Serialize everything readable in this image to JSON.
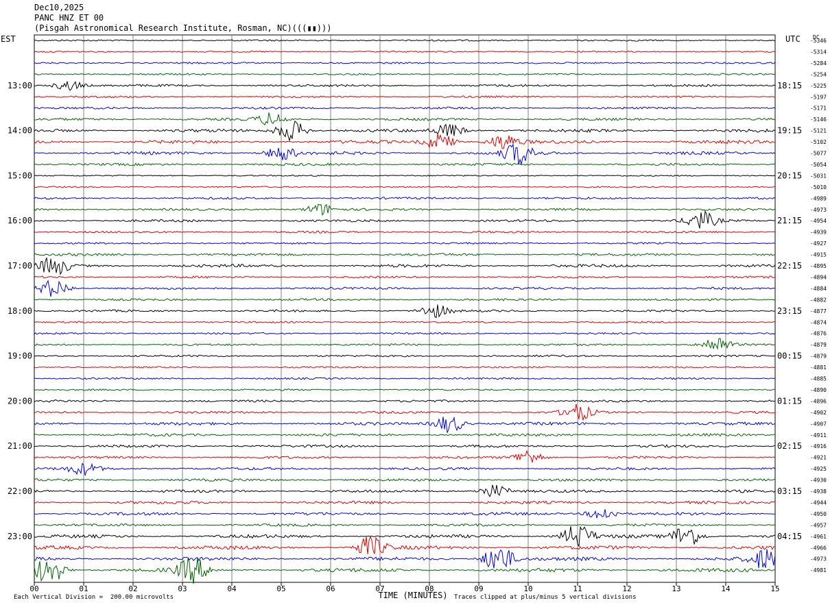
{
  "header": {
    "line1": "Dec10,2025",
    "line2": "PANC HNZ ET 00",
    "line3": "(Pisgah Astronomical Research Institute, Rosman, NC)(((▮▮)))"
  },
  "left_axis_title": "EST",
  "right_axis_title": "UTC",
  "dc_title": "DC",
  "footer": {
    "scale_note": "Each Vertical Division =  200.00 microvolts",
    "clip_note": "Traces clipped at plus/minus 5 vertical divisions"
  },
  "colors": {
    "trace_cycle": [
      "#000000",
      "#e00000",
      "#0000e0",
      "#006400"
    ],
    "grid": "#808080"
  },
  "chart_data": {
    "type": "line",
    "title": "PANC HNZ ET 00",
    "xlabel": "TIME (MINUTES)",
    "x_ticks": [
      "00",
      "01",
      "02",
      "03",
      "04",
      "05",
      "06",
      "07",
      "08",
      "09",
      "10",
      "11",
      "12",
      "13",
      "14",
      "15"
    ],
    "xlim": [
      0,
      15
    ],
    "left_hour_labels": [
      "13:00",
      "14:00",
      "15:00",
      "16:00",
      "17:00",
      "18:00",
      "19:00",
      "20:00",
      "21:00",
      "22:00",
      "23:00"
    ],
    "right_hour_labels": [
      "18:15",
      "19:15",
      "20:15",
      "21:15",
      "22:15",
      "23:15",
      "00:15",
      "01:15",
      "02:15",
      "03:15",
      "04:15"
    ],
    "first_labeled_row": 4,
    "dc_offsets": [
      "-5346",
      "-5314",
      "-5284",
      "-5254",
      "-5225",
      "-5197",
      "-5171",
      "-5146",
      "-5121",
      "-5102",
      "-5077",
      "-5054",
      "-5031",
      "-5010",
      "-4989",
      "-4973",
      "-4954",
      "-4939",
      "-4927",
      "-4915",
      "-4895",
      "-4894",
      "-4884",
      "-4882",
      "-4877",
      "-4874",
      "-4876",
      "-4879",
      "-4879",
      "-4881",
      "-4885",
      "-4890",
      "-4896",
      "-4902",
      "-4907",
      "-4911",
      "-4916",
      "-4921",
      "-4925",
      "-4930",
      "-4938",
      "-4944",
      "-4950",
      "-4957",
      "-4961",
      "-4966",
      "-4973",
      "-4981"
    ],
    "row_activity": [
      0.25,
      0.2,
      0.3,
      0.3,
      0.5,
      0.4,
      0.45,
      0.6,
      0.8,
      0.9,
      0.8,
      0.55,
      0.15,
      0.2,
      0.45,
      0.5,
      0.55,
      0.45,
      0.35,
      0.6,
      0.75,
      0.45,
      0.5,
      0.45,
      0.45,
      0.3,
      0.35,
      0.4,
      0.4,
      0.25,
      0.35,
      0.3,
      0.5,
      0.55,
      0.75,
      0.65,
      0.6,
      0.55,
      0.6,
      0.6,
      0.65,
      0.75,
      0.75,
      0.6,
      0.9,
      1.0,
      1.0,
      1.0
    ],
    "bursts": [
      {
        "row": 4,
        "minute": 0.7,
        "amp": 1.2
      },
      {
        "row": 7,
        "minute": 4.8,
        "amp": 1.5
      },
      {
        "row": 8,
        "minute": 5.2,
        "amp": 2.5
      },
      {
        "row": 8,
        "minute": 8.4,
        "amp": 1.6
      },
      {
        "row": 9,
        "minute": 8.2,
        "amp": 2.0
      },
      {
        "row": 9,
        "minute": 9.5,
        "amp": 1.8
      },
      {
        "row": 10,
        "minute": 5.0,
        "amp": 1.8
      },
      {
        "row": 10,
        "minute": 9.8,
        "amp": 2.6
      },
      {
        "row": 15,
        "minute": 5.8,
        "amp": 1.4
      },
      {
        "row": 16,
        "minute": 13.5,
        "amp": 2.2
      },
      {
        "row": 20,
        "minute": 0.4,
        "amp": 2.2
      },
      {
        "row": 22,
        "minute": 0.4,
        "amp": 2.2
      },
      {
        "row": 24,
        "minute": 8.1,
        "amp": 1.6
      },
      {
        "row": 27,
        "minute": 13.8,
        "amp": 2.0
      },
      {
        "row": 33,
        "minute": 11.0,
        "amp": 2.0
      },
      {
        "row": 34,
        "minute": 8.4,
        "amp": 2.2
      },
      {
        "row": 37,
        "minute": 10.0,
        "amp": 1.8
      },
      {
        "row": 38,
        "minute": 1.0,
        "amp": 1.4
      },
      {
        "row": 40,
        "minute": 9.3,
        "amp": 1.6
      },
      {
        "row": 42,
        "minute": 11.5,
        "amp": 1.6
      },
      {
        "row": 44,
        "minute": 11.0,
        "amp": 3.0
      },
      {
        "row": 44,
        "minute": 13.2,
        "amp": 2.8
      },
      {
        "row": 45,
        "minute": 6.8,
        "amp": 2.6
      },
      {
        "row": 46,
        "minute": 9.4,
        "amp": 3.5
      },
      {
        "row": 46,
        "minute": 14.8,
        "amp": 2.4
      },
      {
        "row": 47,
        "minute": 0.3,
        "amp": 3.5
      },
      {
        "row": 47,
        "minute": 3.2,
        "amp": 3.0
      }
    ]
  }
}
